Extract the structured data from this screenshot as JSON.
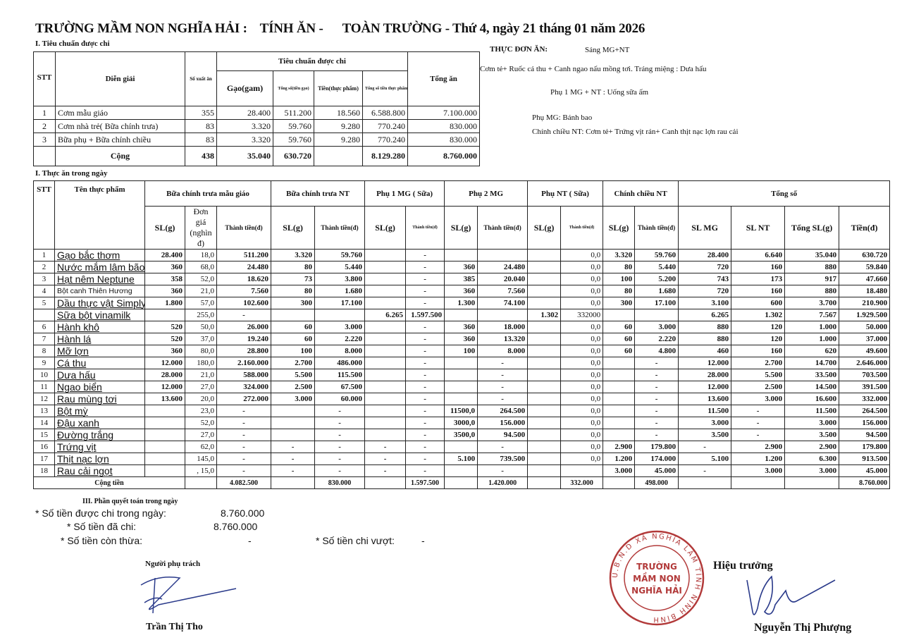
{
  "header": {
    "school": "TRƯỜNG MẦM NON NGHĨA HẢI :",
    "calc": "TÍNH ĂN -",
    "scope_date": "TOÀN TRƯỜNG - Thứ 4, ngày 21 tháng 01 năm 2026"
  },
  "section1": {
    "title": "I. Tiêu chuẩn được chi",
    "headers": {
      "stt": "STT",
      "desc": "Diễn giải",
      "servings": "Số xuất ăn",
      "group": "Tiêu chuẩn được chi",
      "rice": "Gạo(gam)",
      "rice_total": "Tổng số(tiền gạo)",
      "food_money": "Tiền(thực phẩm)",
      "food_total": "Tổng số tiền thực phẩm",
      "total": "Tổng ăn"
    },
    "rows": [
      [
        "1",
        "Cơm mẫu giáo",
        "355",
        "28.400",
        "511.200",
        "18.560",
        "6.588.800",
        "7.100.000"
      ],
      [
        "2",
        "Cơm nhà trẻ( Bữa chính trưa)",
        "83",
        "3.320",
        "59.760",
        "9.280",
        "770.240",
        "830.000"
      ],
      [
        "3",
        "Bữa phụ + Bữa chính chiều",
        "83",
        "3.320",
        "59.760",
        "9.280",
        "770.240",
        "830.000"
      ]
    ],
    "total_row": [
      "",
      "Cộng",
      "438",
      "35.040",
      "630.720",
      "",
      "8.129.280",
      "8.760.000"
    ]
  },
  "menu": {
    "label": "THỰC ĐƠN ĂN:",
    "morning": "Sáng MG+NT",
    "main": "Cơm tẻ+ Ruốc cá thu + Canh ngao nấu mồng tơi. Tráng miệng : Dưa hấu",
    "snack1": "Phụ 1 MG + NT : Uống sữa ấm",
    "snack_mg": "Phụ MG: Bánh bao",
    "afternoon_nt": "Chính chiều NT:  Cơm tẻ+ Trứng vịt rán+ Canh thịt nạc lợn rau cải"
  },
  "section2": {
    "title": "I. Thực ăn trong ngày",
    "groups": [
      "Bữa chính trưa mẫu giáo",
      "Bữa chính trưa NT",
      "Phụ 1 MG ( Sữa)",
      "Phụ 2 MG",
      "Phụ NT ( Sữa)",
      "Chính chiều NT",
      "Tổng số"
    ],
    "headers": {
      "stt": "STT",
      "name": "Tên thực phẩm",
      "sl": "SL(g)",
      "unit_price": "Đơn giá (nghìn đ)",
      "amount": "Thành tiền(đ)",
      "sl_mg": "SL MG",
      "sl_nt": "SL NT",
      "total_sl": "Tổng SL(g)",
      "money": "Tiền(đ)"
    },
    "rows": [
      [
        "1",
        "Gạo bắc thơm",
        "28.400",
        "18,0",
        "511.200",
        "3.320",
        "59.760",
        "",
        "-",
        "",
        "",
        "",
        "0,0",
        "3.320",
        "59.760",
        "28.400",
        "6.640",
        "35.040",
        "630.720"
      ],
      [
        "2",
        "Nước mắm lâm bão",
        "360",
        "68,0",
        "24.480",
        "80",
        "5.440",
        "",
        "-",
        "360",
        "24.480",
        "",
        "0,0",
        "80",
        "5.440",
        "720",
        "160",
        "880",
        "59.840"
      ],
      [
        "3",
        "Hạt nêm Neptune",
        "358",
        "52,0",
        "18.620",
        "73",
        "3.800",
        "",
        "-",
        "385",
        "20.040",
        "",
        "0,0",
        "100",
        "5.200",
        "743",
        "173",
        "917",
        "47.660"
      ],
      [
        "4",
        "Bột canh Thiên Hương",
        "360",
        "21,0",
        "7.560",
        "80",
        "1.680",
        "",
        "-",
        "360",
        "7.560",
        "",
        "0,0",
        "80",
        "1.680",
        "720",
        "160",
        "880",
        "18.480"
      ],
      [
        "5",
        "Dầu thực vật Simply",
        "1.800",
        "57,0",
        "102.600",
        "300",
        "17.100",
        "",
        "-",
        "1.300",
        "74.100",
        "",
        "0,0",
        "300",
        "17.100",
        "3.100",
        "600",
        "3.700",
        "210.900"
      ],
      [
        "",
        "Sữa bột vinamilk",
        "",
        "255,0",
        "-",
        "",
        "",
        "6.265",
        "1.597.500",
        "",
        "",
        "1.302",
        "332000",
        "",
        "",
        "6.265",
        "1.302",
        "7.567",
        "1.929.500"
      ],
      [
        "6",
        "Hành khô",
        "520",
        "50,0",
        "26.000",
        "60",
        "3.000",
        "",
        "-",
        "360",
        "18.000",
        "",
        "0,0",
        "60",
        "3.000",
        "880",
        "120",
        "1.000",
        "50.000"
      ],
      [
        "7",
        "Hành lá",
        "520",
        "37,0",
        "19.240",
        "60",
        "2.220",
        "",
        "-",
        "360",
        "13.320",
        "",
        "0,0",
        "60",
        "2.220",
        "880",
        "120",
        "1.000",
        "37.000"
      ],
      [
        "8",
        "Mỡ lợn",
        "360",
        "80,0",
        "28.800",
        "100",
        "8.000",
        "",
        "-",
        "100",
        "8.000",
        "",
        "0,0",
        "60",
        "4.800",
        "460",
        "160",
        "620",
        "49.600"
      ],
      [
        "9",
        "Cá thu",
        "12.000",
        "180,0",
        "2.160.000",
        "2.700",
        "486.000",
        "",
        "-",
        "",
        "-",
        "",
        "0,0",
        "",
        "-",
        "12.000",
        "2.700",
        "14.700",
        "2.646.000"
      ],
      [
        "10",
        "Dưa hấu",
        "28.000",
        "21,0",
        "588.000",
        "5.500",
        "115.500",
        "",
        "-",
        "",
        "-",
        "",
        "0,0",
        "",
        "-",
        "28.000",
        "5.500",
        "33.500",
        "703.500"
      ],
      [
        "11",
        "Ngao biển",
        "12.000",
        "27,0",
        "324.000",
        "2.500",
        "67.500",
        "",
        "-",
        "",
        "-",
        "",
        "0,0",
        "",
        "-",
        "12.000",
        "2.500",
        "14.500",
        "391.500"
      ],
      [
        "12",
        "Rau mùng tơi",
        "13.600",
        "20,0",
        "272.000",
        "3.000",
        "60.000",
        "",
        "-",
        "",
        "-",
        "",
        "0,0",
        "",
        "-",
        "13.600",
        "3.000",
        "16.600",
        "332.000"
      ],
      [
        "13",
        "Bột mỳ",
        "",
        "23,0",
        "-",
        "",
        "-",
        "",
        "-",
        "11500,0",
        "264.500",
        "",
        "0,0",
        "",
        "-",
        "11.500",
        "-",
        "11.500",
        "264.500"
      ],
      [
        "14",
        "Đậu xanh",
        "",
        "52,0",
        "-",
        "",
        "-",
        "",
        "-",
        "3000,0",
        "156.000",
        "",
        "0,0",
        "",
        "-",
        "3.000",
        "-",
        "3.000",
        "156.000"
      ],
      [
        "15",
        "Đường trắng",
        "",
        "27,0",
        "-",
        "",
        "-",
        "",
        "-",
        "3500,0",
        "94.500",
        "",
        "0,0",
        "",
        "-",
        "3.500",
        "-",
        "3.500",
        "94.500"
      ],
      [
        "16",
        "Trứng vịt",
        "",
        "62,0",
        "-",
        "-",
        "-",
        "-",
        "-",
        "",
        "-",
        "",
        "0,0",
        "2.900",
        "179.800",
        "-",
        "2.900",
        "2.900",
        "179.800"
      ],
      [
        "17",
        "Thịt nạc lợn",
        "",
        "145,0",
        "-",
        "-",
        "-",
        "-",
        "-",
        "5.100",
        "739.500",
        "",
        "0,0",
        "1.200",
        "174.000",
        "5.100",
        "1.200",
        "6.300",
        "913.500"
      ],
      [
        "18",
        "Rau cải ngọt",
        "",
        ",  15,0",
        "-",
        "-",
        "-",
        "-",
        "-",
        "",
        "-",
        "",
        "",
        "3.000",
        "45.000",
        "-",
        "3.000",
        "3.000",
        "45.000"
      ]
    ],
    "total_label": "Cộng tiền",
    "total_row": [
      "",
      "4.082.500",
      "",
      "830.000",
      "",
      "1.597.500",
      "",
      "1.420.000",
      "",
      "332.000",
      "",
      "498.000",
      "",
      "",
      "",
      "8.760.000"
    ]
  },
  "section3": {
    "title": "III. Phần quyết toán trong ngày",
    "allowed_label": "* Số tiền được chi trong ngày:",
    "allowed": "8.760.000",
    "spent_label": "* Số tiền đã chi:",
    "spent": "8.760.000",
    "remain_label": "* Số tiền còn thừa:",
    "remain": "-",
    "over_label": "* Số tiền chi vượt:",
    "over": "-"
  },
  "signatures": {
    "left_title": "Người phụ trách",
    "left_name": "Trần Thị Tho",
    "right_title": "Hiệu trưởng",
    "right_name": "Nguyễn Thị Phượng"
  },
  "stamp": {
    "ring": "U.B.N.D XÃ NGHĨA LÂM  TỈNH NINH BÌNH",
    "line1": "TRƯỜNG",
    "line2": "MẦM NON",
    "line3": "NGHĨA HẢI",
    "color": "#b23a3a"
  }
}
